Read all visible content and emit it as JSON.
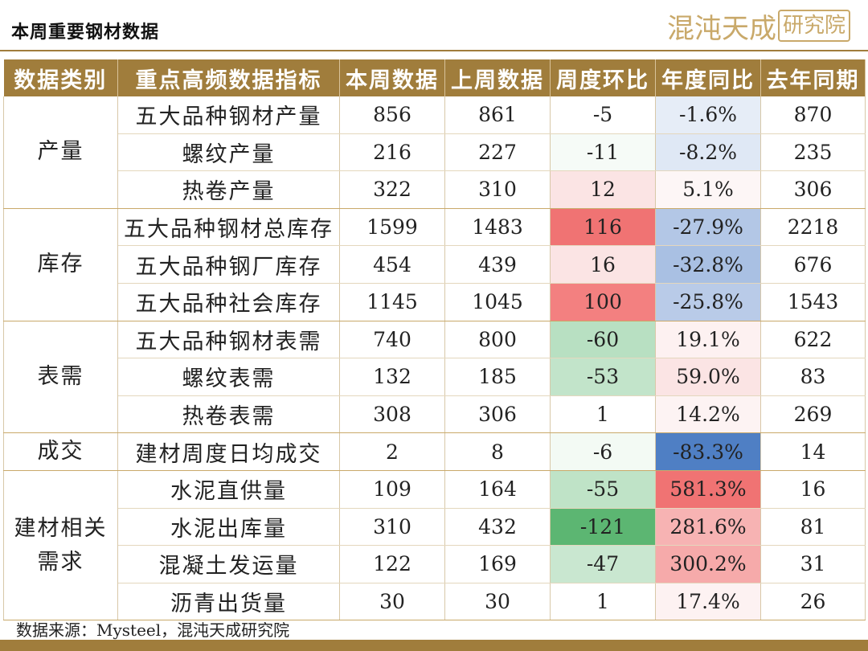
{
  "title": "本周重要钢材数据",
  "logo": {
    "text": "混沌天成",
    "seal": "研究院"
  },
  "colors": {
    "header_bg": "#a07d3c",
    "red_dark": "#f07373",
    "red_light": "#fbe4e4",
    "green_dark": "#5cb672",
    "green_mid": "#b8e0c2",
    "blue_dark": "#4f7fc4",
    "blue_mid": "#b3c7e6",
    "blue_light": "#e6edf7"
  },
  "table": {
    "headers": [
      "数据类别",
      "重点高频数据指标",
      "本周数据",
      "上周数据",
      "周度环比",
      "年度同比",
      "去年同期"
    ],
    "groups": [
      {
        "category": "产量",
        "rows": [
          {
            "indicator": "五大品种钢材产量",
            "this_week": "856",
            "last_week": "861",
            "wow": "-5",
            "yoy": "-1.6%",
            "last_year": "870",
            "wow_color": "#ffffff",
            "yoy_color": "#e6edf7"
          },
          {
            "indicator": "螺纹产量",
            "this_week": "216",
            "last_week": "227",
            "wow": "-11",
            "yoy": "-8.2%",
            "last_year": "235",
            "wow_color": "#f6fbf7",
            "yoy_color": "#dfe8f5"
          },
          {
            "indicator": "热卷产量",
            "this_week": "322",
            "last_week": "310",
            "wow": "12",
            "yoy": "5.1%",
            "last_year": "306",
            "wow_color": "#fbe4e4",
            "yoy_color": "#fdf6f6"
          }
        ]
      },
      {
        "category": "库存",
        "rows": [
          {
            "indicator": "五大品种钢材总库存",
            "this_week": "1599",
            "last_week": "1483",
            "wow": "116",
            "yoy": "-27.9%",
            "last_year": "2218",
            "wow_color": "#f07373",
            "yoy_color": "#b3c7e6"
          },
          {
            "indicator": "五大品种钢厂库存",
            "this_week": "454",
            "last_week": "439",
            "wow": "16",
            "yoy": "-32.8%",
            "last_year": "676",
            "wow_color": "#fbe4e4",
            "yoy_color": "#a9c0e3"
          },
          {
            "indicator": "五大品种社会库存",
            "this_week": "1145",
            "last_week": "1045",
            "wow": "100",
            "yoy": "-25.8%",
            "last_year": "1543",
            "wow_color": "#f38080",
            "yoy_color": "#b9cbe8"
          }
        ]
      },
      {
        "category": "表需",
        "rows": [
          {
            "indicator": "五大品种钢材表需",
            "this_week": "740",
            "last_week": "800",
            "wow": "-60",
            "yoy": "19.1%",
            "last_year": "622",
            "wow_color": "#b8e0c2",
            "yoy_color": "#fdf1f1"
          },
          {
            "indicator": "螺纹表需",
            "this_week": "132",
            "last_week": "185",
            "wow": "-53",
            "yoy": "59.0%",
            "last_year": "83",
            "wow_color": "#c2e4ca",
            "yoy_color": "#fbe4e4"
          },
          {
            "indicator": "热卷表需",
            "this_week": "308",
            "last_week": "306",
            "wow": "1",
            "yoy": "14.2%",
            "last_year": "269",
            "wow_color": "#ffffff",
            "yoy_color": "#fdf3f3"
          }
        ]
      },
      {
        "category": "成交",
        "rows": [
          {
            "indicator": "建材周度日均成交",
            "this_week": "2",
            "last_week": "8",
            "wow": "-6",
            "yoy": "-83.3%",
            "last_year": "14",
            "wow_color": "#f3faf4",
            "yoy_color": "#4f7fc4"
          }
        ]
      },
      {
        "category": "建材相关需求",
        "rows": [
          {
            "indicator": "水泥直供量",
            "this_week": "109",
            "last_week": "164",
            "wow": "-55",
            "yoy": "581.3%",
            "last_year": "16",
            "wow_color": "#bfe3c7",
            "yoy_color": "#f07373"
          },
          {
            "indicator": "水泥出库量",
            "this_week": "310",
            "last_week": "432",
            "wow": "-121",
            "yoy": "281.6%",
            "last_year": "81",
            "wow_color": "#5cb672",
            "yoy_color": "#f7b3b3"
          },
          {
            "indicator": "混凝土发运量",
            "this_week": "122",
            "last_week": "169",
            "wow": "-47",
            "yoy": "300.2%",
            "last_year": "31",
            "wow_color": "#c9e7d0",
            "yoy_color": "#f6aaaa"
          },
          {
            "indicator": "沥青出货量",
            "this_week": "30",
            "last_week": "30",
            "wow": "1",
            "yoy": "17.4%",
            "last_year": "26",
            "wow_color": "#ffffff",
            "yoy_color": "#fdf2f2"
          }
        ]
      }
    ]
  },
  "source": "数据来源：Mysteel，混沌天成研究院"
}
